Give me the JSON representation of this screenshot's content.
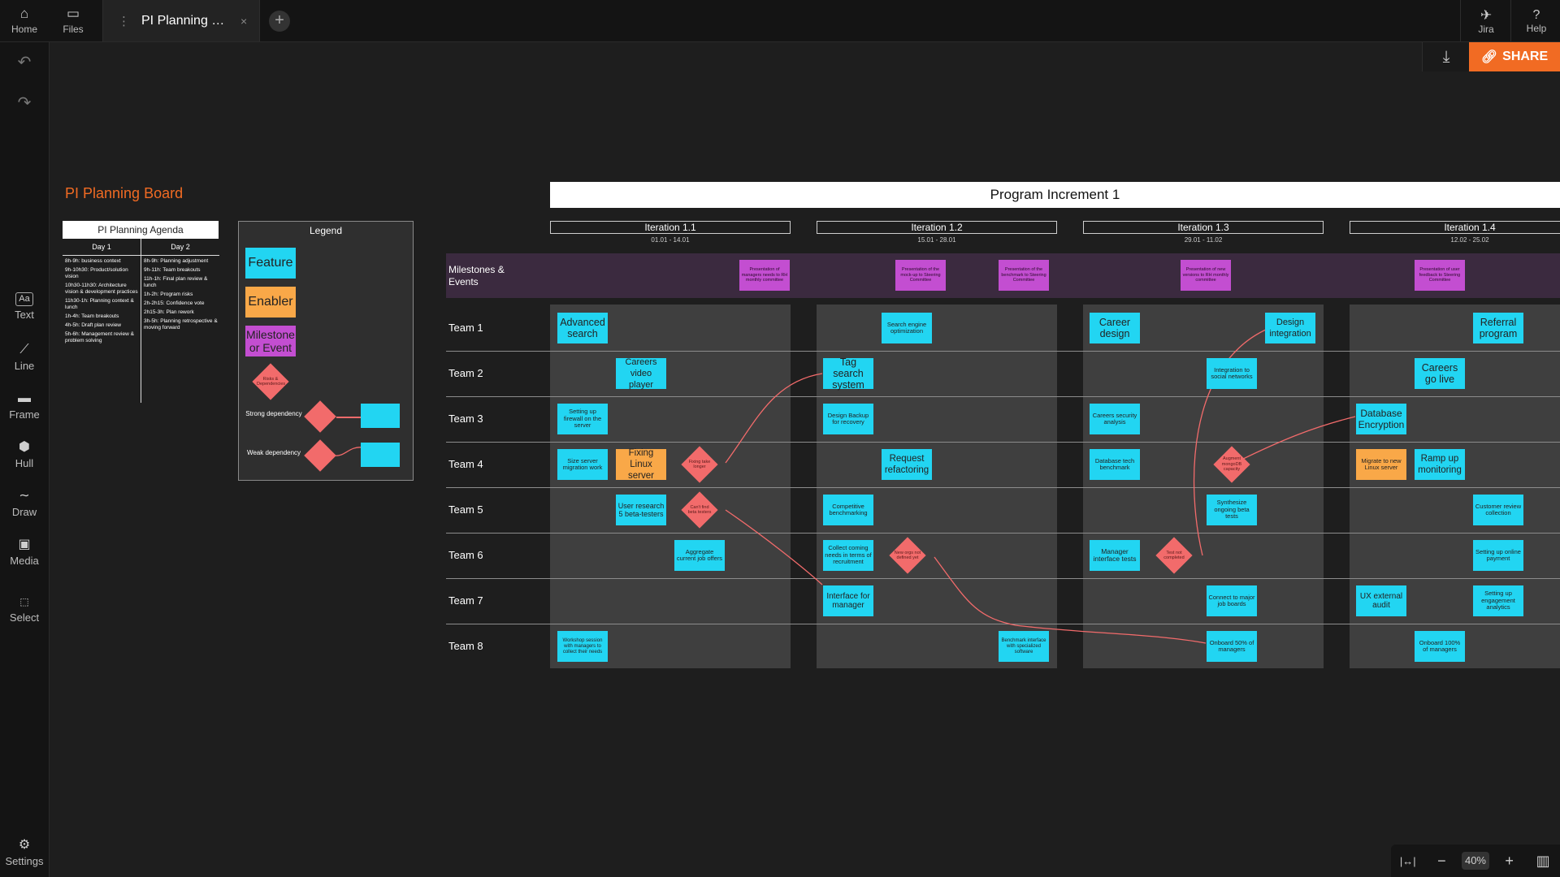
{
  "topbar": {
    "home_label": "Home",
    "files_label": "Files",
    "tab_title": "PI Planning Board",
    "tab_close": "×",
    "new_tab": "+",
    "jira_label": "Jira",
    "help_label": "Help",
    "help_glyph": "?"
  },
  "toolbar": {
    "undo": "↶",
    "redo": "↷",
    "text_icon": "Aa",
    "text_label": "Text",
    "line_label": "Line",
    "frame_label": "Frame",
    "hull_label": "Hull",
    "draw_label": "Draw",
    "media_label": "Media",
    "select_label": "Select",
    "settings_label": "Settings"
  },
  "actions": {
    "share_label": "SHARE",
    "download_icon": "download-icon"
  },
  "zoom": {
    "fit_glyph": "|↔|",
    "minus": "−",
    "level": "40%",
    "plus": "+",
    "map_glyph": "▥"
  },
  "board": {
    "title": "PI Planning Board",
    "agenda": {
      "title": "PI Planning Agenda",
      "day1": "Day 1",
      "day2": "Day 2",
      "day1_items": [
        "8h-9h: business context",
        "9h-10h30: Product/solution vision",
        "10h30-11h30: Architecture vision & development practices",
        "11h30-1h: Planning context & lunch",
        "1h-4h: Team breakouts",
        "4h-5h: Draft plan review",
        "5h-6h: Management review & problem solving"
      ],
      "day2_items": [
        "8h-9h: Planning adjustment",
        "9h-11h: Team breakouts",
        "11h-1h: Final plan review & lunch",
        "1h-2h: Program risks",
        "2h-2h15: Confidence vote",
        "2h15-3h: Plan rework",
        "3h-5h: Planning retrospective & moving forward"
      ]
    },
    "legend": {
      "title": "Legend",
      "feature": "Feature",
      "enabler": "Enabler",
      "milestone": "Milestone or Event",
      "risks": "Risks & Dependencies",
      "strong": "Strong dependency",
      "weak": "Weak dependency"
    },
    "pi_title": "Program Increment 1",
    "iterations": [
      {
        "name": "Iteration 1.1",
        "dates": "01.01 - 14.01"
      },
      {
        "name": "Iteration 1.2",
        "dates": "15.01 - 28.01"
      },
      {
        "name": "Iteration 1.3",
        "dates": "29.01 - 11.02"
      },
      {
        "name": "Iteration 1.4",
        "dates": "12.02 - 25.02"
      }
    ],
    "milestones_label": "Milestones & Events",
    "teams": [
      "Team 1",
      "Team 2",
      "Team 3",
      "Team 4",
      "Team 5",
      "Team 6",
      "Team 7",
      "Team 8"
    ],
    "milestone_cards": [
      "Presentation of managers needs to RH monthly committee",
      "Presentation of the mock-up to Steering Committee",
      "Presentation of the benchmark to Steering Committee",
      "Presentation of new versions to RH monthly committee",
      "Presentation of user feedback to Steering Committee"
    ],
    "cards": {
      "t1_advanced": "Advanced search",
      "t1_search_engine": "Search engine optimization",
      "t1_career_design": "Career design",
      "t1_design_integration": "Design integration",
      "t1_referral": "Referral program",
      "t2_careers_video": "Careers video player",
      "t2_tag_search": "Tag search system",
      "t2_integration_social": "Integration to social networks",
      "t2_careers_live": "Careers go live",
      "t3_firewall": "Setting up firewall on the server",
      "t3_design_backup": "Design Backup for recovery",
      "t3_careers_security": "Careers security analysis",
      "t3_db_encryption": "Database Encryption",
      "t4_size_server": "Size server migration work",
      "t4_fixing_linux": "Fixing Linux server",
      "t4_request_refactor": "Request refactoring",
      "t4_db_tech": "Database tech benchmark",
      "t4_migrate_linux": "Migrate to new Linux server",
      "t4_ramp_up": "Ramp up monitoring",
      "t5_user_research": "User research 5 beta-testers",
      "t5_competitive": "Competitive benchmarking",
      "t5_synthesize": "Synthesize ongoing beta tests",
      "t5_customer_review": "Customer review collection",
      "t6_aggregate": "Aggregate current job offers",
      "t6_collect_needs": "Collect coming needs in terms of recruitment",
      "t6_manager_tests": "Manager interface tests",
      "t6_online_payment": "Setting up online payment",
      "t7_interface_manager": "Interface for manager",
      "t7_connect_boards": "Connect to major job boards",
      "t7_ux_audit": "UX external audit",
      "t7_engagement": "Setting up engagement analytics",
      "t8_workshop": "Workshop session with managers to collect their needs",
      "t8_benchmark_interface": "Benchmark interface with specialized software",
      "t8_onboard50": "Onboard 50% of managers",
      "t8_onboard100": "Onboard 100% of managers"
    },
    "risks": {
      "fixing_take_longer": "Fixing take longer",
      "cant_find_beta": "Can't find beta testers",
      "new_orgs_not_defined": "New orgs not defined yet",
      "augment_mongodb": "Augment mongoDB capacity",
      "test_not_completed": "Test not completed"
    },
    "colors": {
      "feature": "#22d5f2",
      "enabler": "#f9a848",
      "milestone": "#c34ed1",
      "risk": "#f26b6b",
      "accent": "#f16b23"
    }
  }
}
